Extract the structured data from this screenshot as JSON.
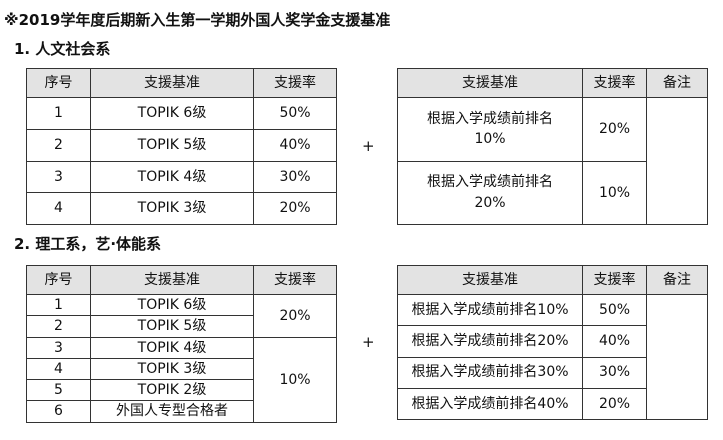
{
  "title": "※2019学年度后期新入生第一学期外国人奖学金支援基准",
  "section1": {
    "heading": "1. 人文社会系",
    "left_headers": [
      "序号",
      "支援基准",
      "支援率"
    ],
    "left_rows": [
      {
        "no": "1",
        "basis": "TOPIK 6级",
        "rate": "50%"
      },
      {
        "no": "2",
        "basis": "TOPIK 5级",
        "rate": "40%"
      },
      {
        "no": "3",
        "basis": "TOPIK 4级",
        "rate": "30%"
      },
      {
        "no": "4",
        "basis": "TOPIK 3级",
        "rate": "20%"
      }
    ],
    "plus": "+",
    "right_headers": [
      "支援基准",
      "支援率",
      "备注"
    ],
    "right_rows": [
      {
        "basis": "根据入学成绩前排名 10%",
        "rate": "20%",
        "note": ""
      },
      {
        "basis": "根据入学成绩前排名 20%",
        "rate": "10%"
      }
    ]
  },
  "section2": {
    "heading": "2. 理工系，艺·体能系",
    "left_headers": [
      "序号",
      "支援基准",
      "支援率"
    ],
    "left_rows": [
      {
        "no": "1",
        "basis": "TOPIK 6级"
      },
      {
        "no": "2",
        "basis": "TOPIK 5级"
      },
      {
        "no": "3",
        "basis": "TOPIK 4级"
      },
      {
        "no": "4",
        "basis": "TOPIK 3级"
      },
      {
        "no": "5",
        "basis": "TOPIK 2级"
      },
      {
        "no": "6",
        "basis": "外国人专型合格者"
      }
    ],
    "left_rates": [
      "20%",
      "10%"
    ],
    "plus": "+",
    "right_headers": [
      "支援基准",
      "支援率",
      "备注"
    ],
    "right_rows": [
      {
        "basis": "根据入学成绩前排名10%",
        "rate": "50%"
      },
      {
        "basis": "根据入学成绩前排名20%",
        "rate": "40%"
      },
      {
        "basis": "根据入学成绩前排名30%",
        "rate": "30%"
      },
      {
        "basis": "根据入学成绩前排名40%",
        "rate": "20%"
      }
    ],
    "note": ""
  }
}
